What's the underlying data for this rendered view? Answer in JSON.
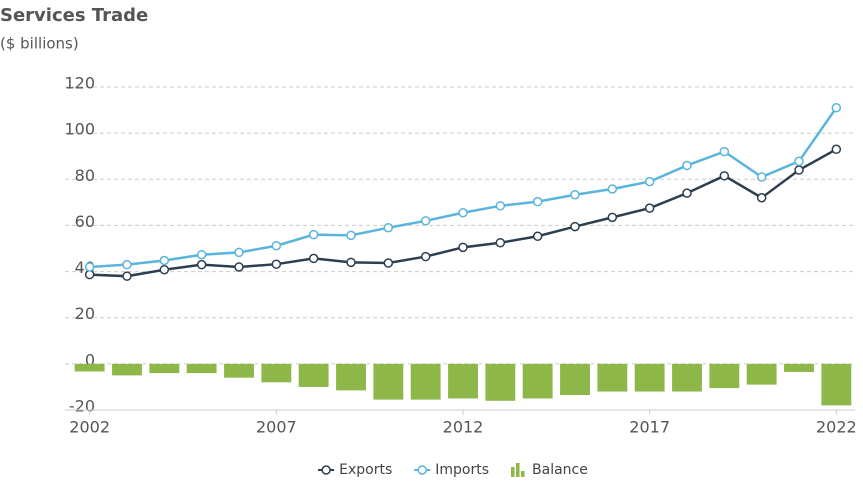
{
  "chart_data": {
    "type": "line",
    "title": "Services Trade",
    "subtitle": "($ billions)",
    "x": [
      2002,
      2003,
      2004,
      2005,
      2006,
      2007,
      2008,
      2009,
      2010,
      2011,
      2012,
      2013,
      2014,
      2015,
      2016,
      2017,
      2018,
      2019,
      2020,
      2021,
      2022
    ],
    "xlim": [
      2001.5,
      2022.5
    ],
    "xticks": [
      2002,
      2007,
      2012,
      2017,
      2022
    ],
    "ylim": [
      -20,
      120
    ],
    "yticks": [
      -20,
      0,
      20,
      40,
      60,
      80,
      100,
      120
    ],
    "grid": true,
    "legend": "bottom",
    "series": [
      {
        "name": "Exports",
        "color": "#2d3e50",
        "type": "line",
        "values": [
          38.7,
          38,
          40.8,
          43,
          42,
          43.2,
          45.7,
          44,
          43.7,
          46.5,
          50.5,
          52.5,
          55.3,
          59.5,
          63.5,
          67.5,
          74,
          81.5,
          72,
          84,
          93
        ]
      },
      {
        "name": "Imports",
        "color": "#5ab4dc",
        "type": "line",
        "values": [
          42,
          43,
          44.8,
          47.3,
          48.3,
          51.2,
          56,
          55.7,
          59,
          62,
          65.5,
          68.5,
          70.3,
          73.3,
          75.8,
          79,
          86,
          92,
          81,
          87.8,
          111
        ]
      },
      {
        "name": "Balance",
        "color": "#8db849",
        "type": "bar",
        "values": [
          -3.3,
          -5,
          -4,
          -4,
          -6,
          -8,
          -10,
          -11.5,
          -15.5,
          -15.5,
          -15,
          -16,
          -15,
          -13.5,
          -12,
          -12,
          -12,
          -10.5,
          -9,
          -3.5,
          -18
        ]
      }
    ]
  }
}
